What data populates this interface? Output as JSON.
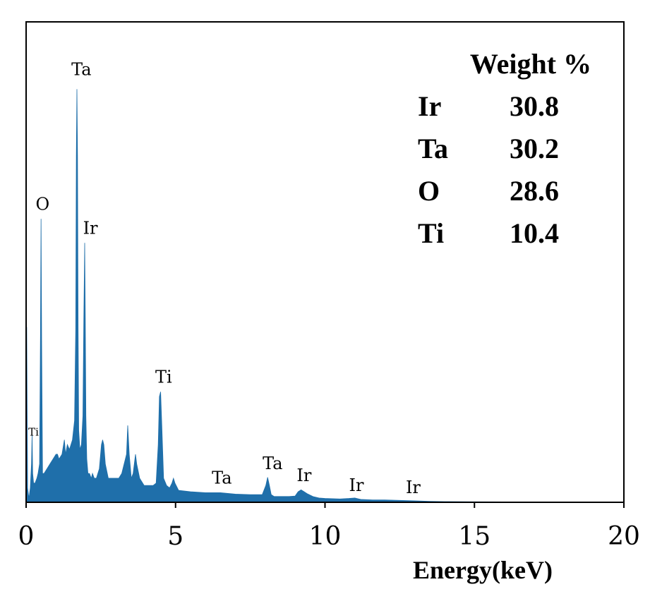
{
  "chart_data": {
    "type": "area",
    "title": "",
    "xlabel": "Energy(keV)",
    "ylabel": "",
    "xlim": [
      0,
      20
    ],
    "ylim": [
      0,
      1.0
    ],
    "xticks": [
      0,
      5,
      10,
      15,
      20
    ],
    "xtick_labels": [
      "0",
      "5",
      "10",
      "15",
      "20"
    ],
    "color": "#1f6faa",
    "grid": false,
    "spectrum": {
      "x": [
        0.0,
        0.02,
        0.05,
        0.08,
        0.1,
        0.14,
        0.18,
        0.2,
        0.22,
        0.25,
        0.3,
        0.36,
        0.4,
        0.45,
        0.48,
        0.5,
        0.52,
        0.55,
        0.6,
        0.7,
        0.8,
        0.9,
        1.0,
        1.05,
        1.1,
        1.2,
        1.28,
        1.32,
        1.38,
        1.45,
        1.55,
        1.62,
        1.66,
        1.68,
        1.7,
        1.72,
        1.74,
        1.76,
        1.8,
        1.85,
        1.9,
        1.93,
        1.96,
        1.98,
        2.0,
        2.03,
        2.07,
        2.12,
        2.18,
        2.22,
        2.28,
        2.35,
        2.45,
        2.52,
        2.56,
        2.6,
        2.65,
        2.75,
        2.9,
        3.0,
        3.1,
        3.2,
        3.28,
        3.32,
        3.36,
        3.4,
        3.45,
        3.52,
        3.58,
        3.62,
        3.66,
        3.7,
        3.8,
        3.95,
        4.1,
        4.25,
        4.35,
        4.42,
        4.46,
        4.5,
        4.54,
        4.6,
        4.7,
        4.8,
        4.88,
        4.93,
        4.98,
        5.1,
        5.5,
        6.0,
        6.5,
        7.0,
        7.5,
        7.9,
        8.02,
        8.08,
        8.14,
        8.2,
        8.3,
        8.5,
        8.8,
        9.0,
        9.1,
        9.2,
        9.3,
        9.4,
        9.6,
        9.8,
        10.0,
        10.5,
        10.8,
        11.0,
        11.2,
        11.6,
        12.0,
        12.5,
        13.0,
        13.5,
        14.0,
        15.0,
        16.0,
        18.0,
        20.0
      ],
      "y": [
        0.0,
        0.365,
        0.03,
        0.015,
        0.01,
        0.03,
        0.08,
        0.14,
        0.06,
        0.04,
        0.04,
        0.05,
        0.06,
        0.08,
        0.35,
        0.59,
        0.33,
        0.06,
        0.06,
        0.07,
        0.08,
        0.09,
        0.1,
        0.1,
        0.09,
        0.1,
        0.13,
        0.1,
        0.12,
        0.11,
        0.13,
        0.17,
        0.36,
        0.72,
        0.86,
        0.72,
        0.36,
        0.15,
        0.11,
        0.12,
        0.18,
        0.38,
        0.54,
        0.38,
        0.18,
        0.09,
        0.06,
        0.06,
        0.05,
        0.06,
        0.05,
        0.05,
        0.07,
        0.12,
        0.13,
        0.12,
        0.08,
        0.05,
        0.05,
        0.05,
        0.05,
        0.06,
        0.08,
        0.09,
        0.1,
        0.16,
        0.1,
        0.05,
        0.06,
        0.08,
        0.1,
        0.08,
        0.05,
        0.035,
        0.035,
        0.035,
        0.04,
        0.12,
        0.22,
        0.23,
        0.16,
        0.05,
        0.035,
        0.03,
        0.04,
        0.05,
        0.04,
        0.025,
        0.022,
        0.02,
        0.02,
        0.017,
        0.016,
        0.016,
        0.035,
        0.052,
        0.035,
        0.016,
        0.012,
        0.012,
        0.012,
        0.013,
        0.022,
        0.026,
        0.022,
        0.018,
        0.012,
        0.009,
        0.008,
        0.007,
        0.008,
        0.009,
        0.006,
        0.005,
        0.005,
        0.004,
        0.003,
        0.002,
        0.0015,
        0.001,
        0.0008,
        0.0005,
        0.0003
      ]
    },
    "peak_labels": [
      {
        "text": "Ti",
        "x": 0.25,
        "y": 0.13,
        "size": "small"
      },
      {
        "text": "O",
        "x": 0.55,
        "y": 0.6,
        "size": "normal"
      },
      {
        "text": "Ta",
        "x": 1.85,
        "y": 0.88,
        "size": "normal"
      },
      {
        "text": "Ir",
        "x": 2.15,
        "y": 0.55,
        "size": "normal"
      },
      {
        "text": "Ti",
        "x": 4.6,
        "y": 0.24,
        "size": "normal"
      },
      {
        "text": "Ta",
        "x": 6.55,
        "y": 0.03,
        "size": "normal"
      },
      {
        "text": "Ta",
        "x": 8.25,
        "y": 0.06,
        "size": "normal"
      },
      {
        "text": "Ir",
        "x": 9.3,
        "y": 0.035,
        "size": "normal"
      },
      {
        "text": "Ir",
        "x": 11.05,
        "y": 0.015,
        "size": "normal"
      },
      {
        "text": "Ir",
        "x": 12.95,
        "y": 0.01,
        "size": "normal"
      }
    ],
    "legend": {
      "title": "Weight %",
      "placement": "top-right",
      "entries": [
        {
          "element": "Ir",
          "value": "30.8"
        },
        {
          "element": "Ta",
          "value": "30.2"
        },
        {
          "element": "O",
          "value": "28.6"
        },
        {
          "element": "Ti",
          "value": "10.4"
        }
      ]
    }
  }
}
